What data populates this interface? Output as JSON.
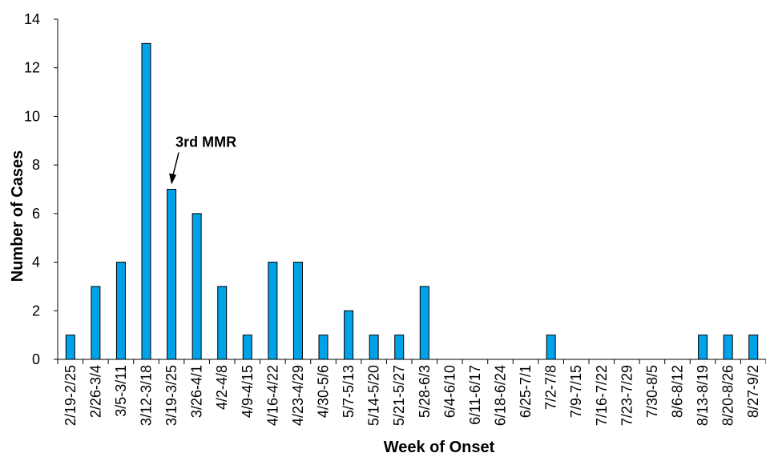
{
  "chart_data": {
    "type": "bar",
    "categories": [
      "2/19-2/25",
      "2/26-3/4",
      "3/5-3/11",
      "3/12-3/18",
      "3/19-3/25",
      "3/26-4/1",
      "4/2-4/8",
      "4/9-4/15",
      "4/16-4/22",
      "4/23-4/29",
      "4/30-5/6",
      "5/7-5/13",
      "5/14-5/20",
      "5/21-5/27",
      "5/28-6/3",
      "6/4-6/10",
      "6/11-6/17",
      "6/18-6/24",
      "6/25-7/1",
      "7/2-7/8",
      "7/9-7/15",
      "7/16-7/22",
      "7/23-7/29",
      "7/30-8/5",
      "8/6-8/12",
      "8/13-8/19",
      "8/20-8/26",
      "8/27-9/2"
    ],
    "values": [
      1,
      3,
      4,
      13,
      7,
      6,
      3,
      1,
      4,
      4,
      1,
      2,
      1,
      1,
      3,
      0,
      0,
      0,
      0,
      1,
      0,
      0,
      0,
      0,
      0,
      1,
      1,
      1
    ],
    "xlabel": "Week of Onset",
    "ylabel": "Number of Cases",
    "ylim": [
      0,
      14
    ],
    "yticks": [
      0,
      2,
      4,
      6,
      8,
      10,
      12,
      14
    ],
    "grid": false,
    "bar_color": "#00a2e8",
    "bar_edge_color": "#000000",
    "annotations": [
      {
        "text": "3rd MMR",
        "category": "3/19-3/25",
        "arrow": true
      }
    ]
  }
}
